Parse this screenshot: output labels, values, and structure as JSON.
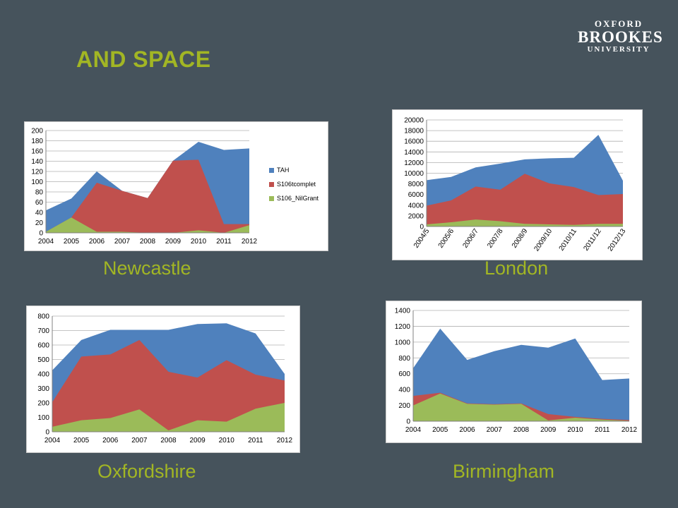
{
  "slide": {
    "title": "AND SPACE"
  },
  "logo": {
    "line1": "OXFORD",
    "line2": "BROOKES",
    "line3": "UNIVERSITY"
  },
  "colors": {
    "TAH": "#4f81bd",
    "S106tcomplet": "#c0504d",
    "S106_NilGrant": "#9bbb59",
    "caption": "#a2b624"
  },
  "chart_data": [
    {
      "type": "area",
      "caption": "Newcastle",
      "stacked": true,
      "categories": [
        "2004",
        "2005",
        "2006",
        "2007",
        "2008",
        "2009",
        "2010",
        "2011",
        "2012"
      ],
      "ylim": [
        0,
        200
      ],
      "yticks": [
        0,
        20,
        40,
        60,
        80,
        100,
        120,
        140,
        160,
        180,
        200
      ],
      "legend": "right",
      "series": [
        {
          "name": "TAH",
          "color": "#4f81bd",
          "values": [
            42,
            37,
            22,
            0,
            0,
            0,
            35,
            145,
            148
          ]
        },
        {
          "name": "S106tcomplet",
          "color": "#c0504d",
          "values": [
            0,
            0,
            96,
            80,
            68,
            141,
            138,
            17,
            2
          ]
        },
        {
          "name": "S106_NilGrant",
          "color": "#9bbb59",
          "values": [
            2,
            30,
            2,
            2,
            0,
            0,
            5,
            0,
            15
          ]
        }
      ]
    },
    {
      "type": "area",
      "caption": "London",
      "stacked": true,
      "categories": [
        "2004/5",
        "2005/6",
        "2006/7",
        "2007/8",
        "2008/9",
        "2009/10",
        "2010/11",
        "2011/12",
        "2012/13"
      ],
      "ylim": [
        0,
        20000
      ],
      "yticks": [
        0,
        2000,
        4000,
        6000,
        8000,
        10000,
        12000,
        14000,
        16000,
        18000,
        20000
      ],
      "legend": "none",
      "series": [
        {
          "name": "TAH",
          "color": "#4f81bd",
          "values": [
            4800,
            4400,
            3600,
            4900,
            2700,
            4700,
            5500,
            11300,
            2500
          ]
        },
        {
          "name": "S106tcomplet",
          "color": "#c0504d",
          "values": [
            3500,
            4100,
            6200,
            5900,
            9400,
            7700,
            7100,
            5400,
            5600
          ]
        },
        {
          "name": "S106_NilGrant",
          "color": "#9bbb59",
          "values": [
            400,
            800,
            1300,
            1000,
            500,
            400,
            300,
            500,
            500
          ]
        }
      ]
    },
    {
      "type": "area",
      "caption": "Oxfordshire",
      "stacked": true,
      "categories": [
        "2004",
        "2005",
        "2006",
        "2007",
        "2008",
        "2009",
        "2010",
        "2011",
        "2012"
      ],
      "ylim": [
        0,
        800
      ],
      "yticks": [
        0,
        100,
        200,
        300,
        400,
        500,
        600,
        700,
        800
      ],
      "legend": "none",
      "series": [
        {
          "name": "TAH",
          "color": "#4f81bd",
          "values": [
            220,
            115,
            170,
            70,
            290,
            370,
            255,
            285,
            45
          ]
        },
        {
          "name": "S106tcomplet",
          "color": "#c0504d",
          "values": [
            170,
            440,
            440,
            480,
            405,
            295,
            425,
            235,
            155
          ]
        },
        {
          "name": "S106_NilGrant",
          "color": "#9bbb59",
          "values": [
            35,
            80,
            95,
            155,
            10,
            80,
            70,
            160,
            200
          ]
        }
      ]
    },
    {
      "type": "area",
      "caption": "Birmingham",
      "stacked": true,
      "categories": [
        "2004",
        "2005",
        "2006",
        "2007",
        "2008",
        "2009",
        "2010",
        "2011",
        "2012"
      ],
      "ylim": [
        0,
        1400
      ],
      "yticks": [
        0,
        200,
        400,
        600,
        800,
        1000,
        1200,
        1400
      ],
      "legend": "none",
      "series": [
        {
          "name": "TAH",
          "color": "#4f81bd",
          "values": [
            350,
            810,
            550,
            670,
            740,
            840,
            990,
            490,
            525
          ]
        },
        {
          "name": "S106tcomplet",
          "color": "#c0504d",
          "values": [
            120,
            10,
            5,
            5,
            5,
            80,
            10,
            10,
            10
          ]
        },
        {
          "name": "S106_NilGrant",
          "color": "#9bbb59",
          "values": [
            200,
            350,
            220,
            210,
            220,
            10,
            45,
            20,
            5
          ]
        }
      ]
    }
  ]
}
